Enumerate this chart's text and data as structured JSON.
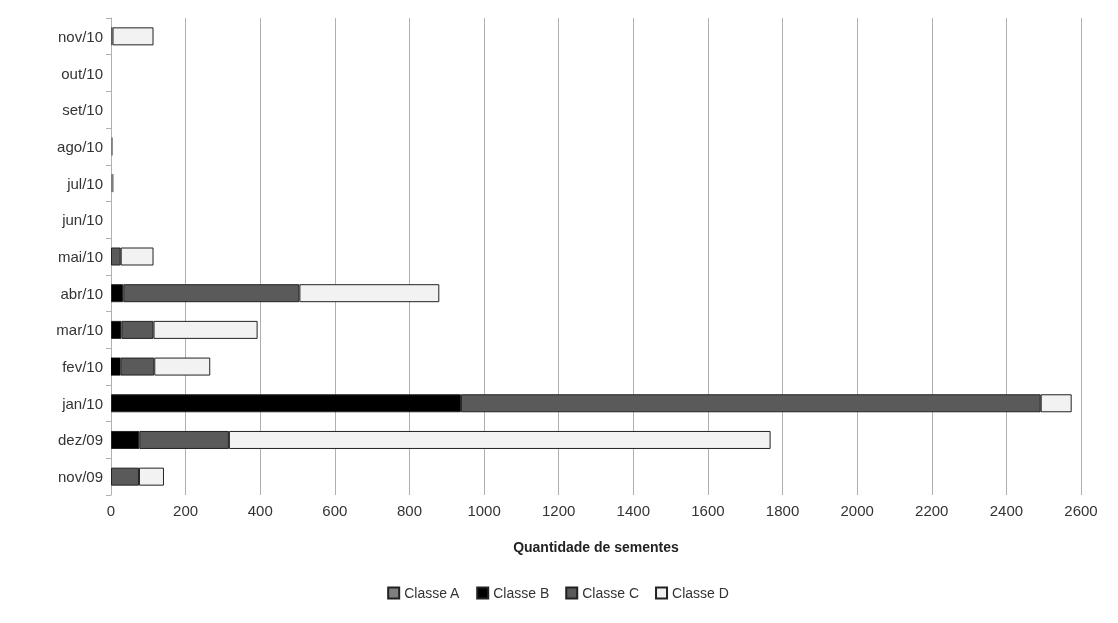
{
  "chart_data": {
    "type": "bar",
    "orientation": "horizontal",
    "stacked": true,
    "xlabel": "Quantidade de sementes",
    "categories": [
      "nov/10",
      "out/10",
      "set/10",
      "ago/10",
      "jul/10",
      "jun/10",
      "mai/10",
      "abr/10",
      "mar/10",
      "fev/10",
      "jan/10",
      "dez/09",
      "nov/09"
    ],
    "series": [
      {
        "name": "Classe A",
        "color": "#7f7f7f",
        "values": [
          0,
          null,
          null,
          5,
          7,
          null,
          0,
          0,
          0,
          0,
          0,
          0,
          0
        ]
      },
      {
        "name": "Classe B",
        "color": "#000000",
        "values": [
          0,
          0,
          0,
          0,
          0,
          0,
          0,
          33,
          28,
          25,
          938,
          76,
          0
        ]
      },
      {
        "name": "Classe C",
        "color": "#5a5a5a",
        "values": [
          4,
          0,
          0,
          0,
          0,
          0,
          26,
          472,
          86,
          91,
          1554,
          240,
          75
        ]
      },
      {
        "name": "Classe D",
        "color": "#f2f2f2",
        "values": [
          110,
          0,
          0,
          0,
          0,
          0,
          88,
          375,
          279,
          150,
          83,
          1452,
          67
        ]
      }
    ],
    "xlim": [
      0,
      2600
    ],
    "xticks": [
      0,
      200,
      400,
      600,
      800,
      1000,
      1200,
      1400,
      1600,
      1800,
      2000,
      2200,
      2400,
      2600
    ],
    "grid": "x",
    "legend": "bottom"
  }
}
